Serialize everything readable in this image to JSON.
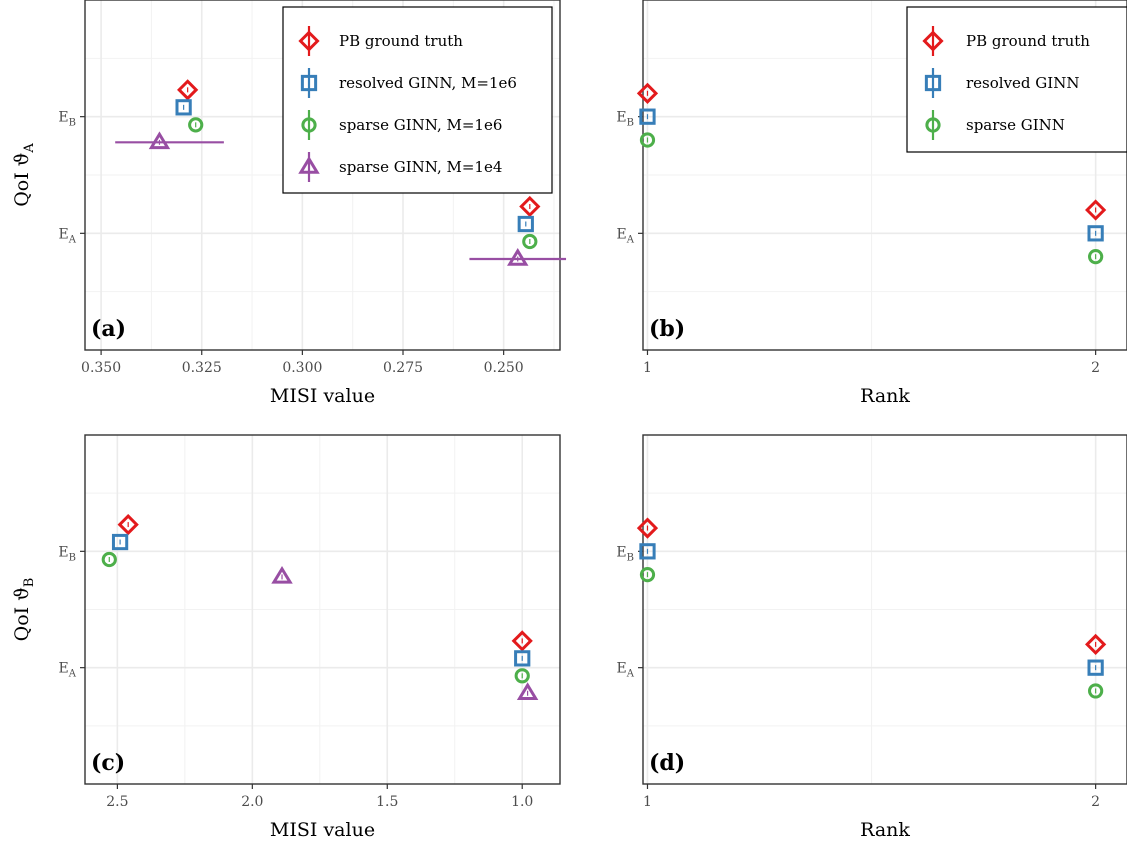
{
  "chart_data": [
    {
      "id": "a",
      "type": "scatter",
      "panel_label": "(a)",
      "xlabel": "MISI value",
      "ylabel": "QoI ϑ_A",
      "x_reversed": true,
      "xlim": [
        0.354,
        0.236
      ],
      "xticks": [
        0.35,
        0.325,
        0.3,
        0.275,
        0.25
      ],
      "xtick_labels": [
        "0.350",
        "0.325",
        "0.300",
        "0.275",
        "0.250"
      ],
      "ylim": [
        0.0,
        3.0
      ],
      "yticks": [
        1,
        2
      ],
      "ytick_labels": [
        {
          "base": "E",
          "sub": "A"
        },
        {
          "base": "E",
          "sub": "B"
        }
      ],
      "legend_position": "top-right",
      "series": [
        {
          "name": "PB ground truth",
          "color": "#e31a1c",
          "shape": "diamond",
          "points": [
            {
              "x": 0.3285,
              "y": 2.23
            },
            {
              "x": 0.2435,
              "y": 1.23
            }
          ]
        },
        {
          "name": "resolved GINN, M=1e6",
          "color": "#377eb8",
          "shape": "square",
          "points": [
            {
              "x": 0.3295,
              "y": 2.08
            },
            {
              "x": 0.2445,
              "y": 1.08
            }
          ]
        },
        {
          "name": "sparse GINN, M=1e6",
          "color": "#4daf4a",
          "shape": "circle",
          "points": [
            {
              "x": 0.3265,
              "y": 1.93
            },
            {
              "x": 0.2435,
              "y": 0.93
            }
          ]
        },
        {
          "name": "sparse GINN, M=1e4",
          "color": "#984ea3",
          "shape": "triangle",
          "points": [
            {
              "x": 0.3355,
              "y": 1.78,
              "xerr": [
                0.3465,
                0.3195
              ]
            },
            {
              "x": 0.2465,
              "y": 0.78,
              "xerr": [
                0.2585,
                0.2345
              ]
            }
          ]
        }
      ]
    },
    {
      "id": "b",
      "type": "scatter",
      "panel_label": "(b)",
      "xlabel": "Rank",
      "ylabel": "",
      "xlim": [
        0.99,
        2.07
      ],
      "xticks": [
        1,
        2
      ],
      "xtick_labels": [
        "1",
        "2"
      ],
      "ylim": [
        0.0,
        3.0
      ],
      "yticks": [
        1,
        2
      ],
      "ytick_labels": [
        {
          "base": "E",
          "sub": "A"
        },
        {
          "base": "E",
          "sub": "B"
        }
      ],
      "legend_position": "top-right",
      "series": [
        {
          "name": "PB ground truth",
          "color": "#e31a1c",
          "shape": "diamond",
          "points": [
            {
              "x": 1,
              "y": 2.2
            },
            {
              "x": 2,
              "y": 1.2
            }
          ]
        },
        {
          "name": "resolved GINN",
          "color": "#377eb8",
          "shape": "square",
          "points": [
            {
              "x": 1,
              "y": 2.0
            },
            {
              "x": 2,
              "y": 1.0
            }
          ]
        },
        {
          "name": "sparse GINN",
          "color": "#4daf4a",
          "shape": "circle",
          "points": [
            {
              "x": 1,
              "y": 1.8
            },
            {
              "x": 2,
              "y": 0.8
            }
          ]
        }
      ]
    },
    {
      "id": "c",
      "type": "scatter",
      "panel_label": "(c)",
      "xlabel": "MISI value",
      "ylabel": "QoI ϑ_B",
      "x_reversed": true,
      "xlim": [
        2.62,
        0.86
      ],
      "xticks": [
        2.5,
        2.0,
        1.5,
        1.0
      ],
      "xtick_labels": [
        "2.5",
        "2.0",
        "1.5",
        "1.0"
      ],
      "ylim": [
        0.0,
        3.0
      ],
      "yticks": [
        1,
        2
      ],
      "ytick_labels": [
        {
          "base": "E",
          "sub": "A"
        },
        {
          "base": "E",
          "sub": "B"
        }
      ],
      "series": [
        {
          "name": "PB ground truth",
          "color": "#e31a1c",
          "shape": "diamond",
          "points": [
            {
              "x": 2.46,
              "y": 2.23
            },
            {
              "x": 1.0,
              "y": 1.23
            }
          ]
        },
        {
          "name": "resolved GINN, M=1e6",
          "color": "#377eb8",
          "shape": "square",
          "points": [
            {
              "x": 2.49,
              "y": 2.08
            },
            {
              "x": 1.0,
              "y": 1.08
            }
          ]
        },
        {
          "name": "sparse GINN, M=1e6",
          "color": "#4daf4a",
          "shape": "circle",
          "points": [
            {
              "x": 2.53,
              "y": 1.93
            },
            {
              "x": 1.0,
              "y": 0.93
            }
          ]
        },
        {
          "name": "sparse GINN, M=1e4",
          "color": "#984ea3",
          "shape": "triangle",
          "points": [
            {
              "x": 1.89,
              "y": 1.78
            },
            {
              "x": 0.98,
              "y": 0.78
            }
          ]
        }
      ]
    },
    {
      "id": "d",
      "type": "scatter",
      "panel_label": "(d)",
      "xlabel": "Rank",
      "ylabel": "",
      "xlim": [
        0.99,
        2.07
      ],
      "xticks": [
        1,
        2
      ],
      "xtick_labels": [
        "1",
        "2"
      ],
      "ylim": [
        0.0,
        3.0
      ],
      "yticks": [
        1,
        2
      ],
      "ytick_labels": [
        {
          "base": "E",
          "sub": "A"
        },
        {
          "base": "E",
          "sub": "B"
        }
      ],
      "series": [
        {
          "name": "PB ground truth",
          "color": "#e31a1c",
          "shape": "diamond",
          "points": [
            {
              "x": 1,
              "y": 2.2
            },
            {
              "x": 2,
              "y": 1.2
            }
          ]
        },
        {
          "name": "resolved GINN",
          "color": "#377eb8",
          "shape": "square",
          "points": [
            {
              "x": 1,
              "y": 2.0
            },
            {
              "x": 2,
              "y": 1.0
            }
          ]
        },
        {
          "name": "sparse GINN",
          "color": "#4daf4a",
          "shape": "circle",
          "points": [
            {
              "x": 1,
              "y": 1.8
            },
            {
              "x": 2,
              "y": 0.8
            }
          ]
        }
      ]
    }
  ]
}
